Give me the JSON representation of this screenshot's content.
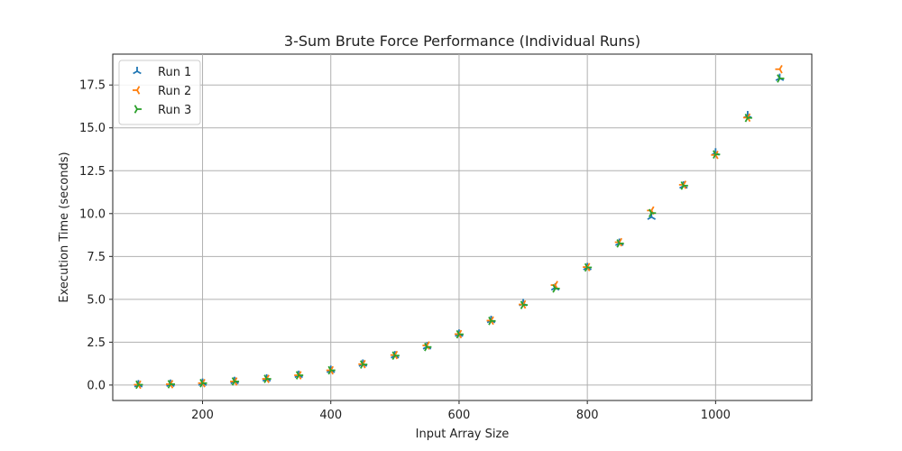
{
  "chart_data": {
    "type": "scatter",
    "title": "3-Sum Brute Force Performance (Individual Runs)",
    "xlabel": "Input Array Size",
    "ylabel": "Execution Time (seconds)",
    "xlim": [
      60,
      1150
    ],
    "ylim": [
      -0.9,
      19.3
    ],
    "xticks": [
      200,
      400,
      600,
      800,
      1000
    ],
    "yticks": [
      0.0,
      2.5,
      5.0,
      7.5,
      10.0,
      12.5,
      15.0,
      17.5
    ],
    "grid": true,
    "legend_position": "top-left",
    "x": [
      100,
      150,
      200,
      250,
      300,
      350,
      400,
      450,
      500,
      550,
      600,
      650,
      700,
      750,
      800,
      850,
      900,
      950,
      1000,
      1050,
      1100
    ],
    "series": [
      {
        "name": "Run 1",
        "marker": "tri_up",
        "color": "#1f77b4",
        "values": [
          0.03,
          0.06,
          0.12,
          0.22,
          0.37,
          0.58,
          0.87,
          1.23,
          1.72,
          2.24,
          2.98,
          3.78,
          4.76,
          5.68,
          6.86,
          8.28,
          9.8,
          11.62,
          13.55,
          15.72,
          17.9
        ]
      },
      {
        "name": "Run 2",
        "marker": "tri_left",
        "color": "#ff7f0e",
        "values": [
          0.02,
          0.05,
          0.11,
          0.21,
          0.36,
          0.57,
          0.86,
          1.22,
          1.75,
          2.31,
          2.97,
          3.76,
          4.7,
          5.83,
          6.88,
          8.33,
          10.18,
          11.68,
          13.42,
          15.6,
          18.42
        ]
      },
      {
        "name": "Run 3",
        "marker": "tri_right",
        "color": "#2ca02c",
        "values": [
          0.02,
          0.05,
          0.11,
          0.21,
          0.36,
          0.57,
          0.86,
          1.2,
          1.72,
          2.22,
          2.96,
          3.74,
          4.67,
          5.63,
          6.86,
          8.26,
          10.03,
          11.63,
          13.45,
          15.58,
          17.88
        ]
      }
    ]
  }
}
